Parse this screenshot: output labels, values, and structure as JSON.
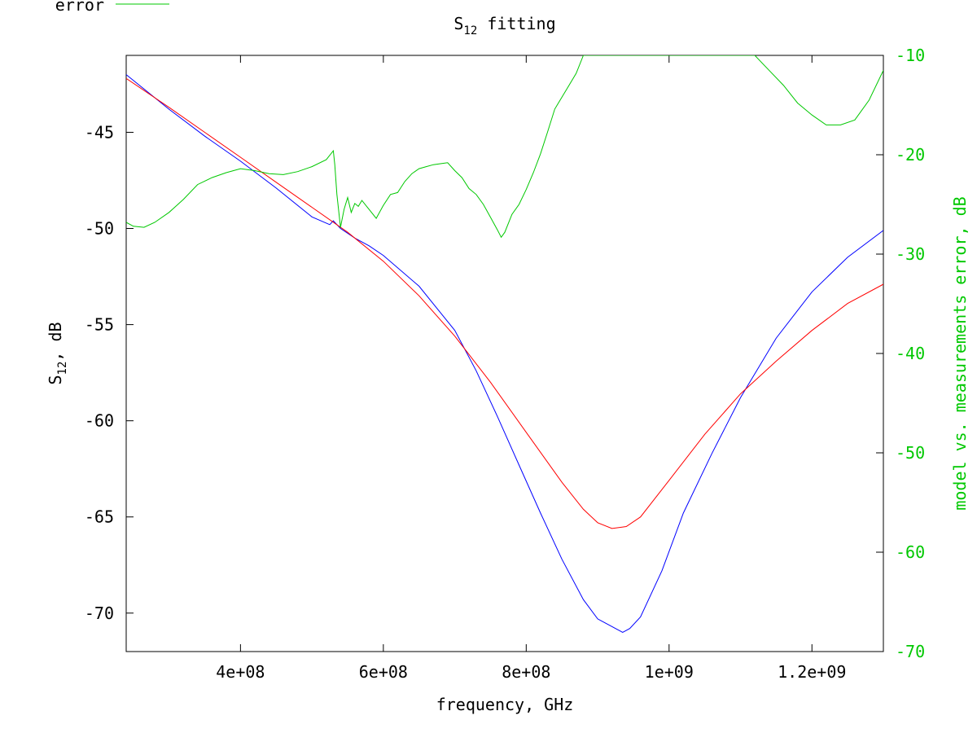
{
  "chart_data": {
    "type": "line",
    "title": {
      "main": "S",
      "sub": "12",
      "rest": " fitting"
    },
    "xlabel": "frequency, GHz",
    "ylabel": {
      "main": "S",
      "sub": "12",
      "rest": ", dB"
    },
    "y2label": "model vs. measurements error, dB",
    "xlim": [
      240000000,
      1300000000
    ],
    "ylim": [
      -72,
      -41
    ],
    "y2lim": [
      -70,
      -10
    ],
    "x_ticks": [
      {
        "value": 400000000,
        "label": "4e+08"
      },
      {
        "value": 600000000,
        "label": "6e+08"
      },
      {
        "value": 800000000,
        "label": "8e+08"
      },
      {
        "value": 1000000000,
        "label": "1e+09"
      },
      {
        "value": 1200000000,
        "label": "1.2e+09"
      }
    ],
    "y_ticks": [
      {
        "value": -45,
        "label": "-45"
      },
      {
        "value": -50,
        "label": "-50"
      },
      {
        "value": -55,
        "label": "-55"
      },
      {
        "value": -60,
        "label": "-60"
      },
      {
        "value": -65,
        "label": "-65"
      },
      {
        "value": -70,
        "label": "-70"
      }
    ],
    "y2_ticks": [
      {
        "value": -10,
        "label": "-10"
      },
      {
        "value": -20,
        "label": "-20"
      },
      {
        "value": -30,
        "label": "-30"
      },
      {
        "value": -40,
        "label": "-40"
      },
      {
        "value": -50,
        "label": "-50"
      },
      {
        "value": -60,
        "label": "-60"
      },
      {
        "value": -70,
        "label": "-70"
      }
    ],
    "grid": false,
    "legend": {
      "position": "top-left",
      "entries": [
        {
          "label": "error",
          "color": "#00c800"
        }
      ]
    },
    "series": [
      {
        "color": "#0000ff",
        "axis": "left",
        "x": [
          240000000,
          300000000,
          350000000,
          400000000,
          450000000,
          500000000,
          525000000,
          530000000,
          540000000,
          560000000,
          580000000,
          600000000,
          650000000,
          700000000,
          730000000,
          760000000,
          790000000,
          820000000,
          850000000,
          880000000,
          900000000,
          920000000,
          935000000,
          945000000,
          960000000,
          990000000,
          1020000000,
          1060000000,
          1100000000,
          1150000000,
          1200000000,
          1250000000,
          1300000000
        ],
        "y": [
          -42.0,
          -43.8,
          -45.2,
          -46.5,
          -47.9,
          -49.4,
          -49.8,
          -49.6,
          -50.0,
          -50.5,
          -50.9,
          -51.4,
          -53.0,
          -55.3,
          -57.4,
          -59.8,
          -62.3,
          -64.8,
          -67.2,
          -69.3,
          -70.3,
          -70.7,
          -71.0,
          -70.8,
          -70.2,
          -67.8,
          -64.8,
          -61.7,
          -58.8,
          -55.7,
          -53.3,
          -51.5,
          -50.1
        ]
      },
      {
        "color": "#ff0000",
        "axis": "left",
        "x": [
          240000000,
          300000000,
          350000000,
          400000000,
          450000000,
          500000000,
          550000000,
          600000000,
          650000000,
          700000000,
          750000000,
          800000000,
          850000000,
          880000000,
          900000000,
          920000000,
          940000000,
          960000000,
          1000000000,
          1050000000,
          1100000000,
          1150000000,
          1200000000,
          1250000000,
          1300000000
        ],
        "y": [
          -42.2,
          -43.7,
          -45.0,
          -46.3,
          -47.6,
          -48.9,
          -50.2,
          -51.7,
          -53.5,
          -55.6,
          -58.0,
          -60.6,
          -63.2,
          -64.6,
          -65.3,
          -65.6,
          -65.5,
          -65.0,
          -63.1,
          -60.7,
          -58.6,
          -56.9,
          -55.3,
          -53.9,
          -52.9
        ]
      },
      {
        "name": "error",
        "color": "#00c800",
        "axis": "right",
        "x": [
          240000000,
          250000000,
          265000000,
          280000000,
          300000000,
          320000000,
          340000000,
          360000000,
          380000000,
          400000000,
          420000000,
          440000000,
          460000000,
          480000000,
          500000000,
          520000000,
          530000000,
          532000000,
          535000000,
          540000000,
          545000000,
          550000000,
          555000000,
          560000000,
          565000000,
          570000000,
          580000000,
          590000000,
          600000000,
          610000000,
          620000000,
          630000000,
          640000000,
          650000000,
          660000000,
          670000000,
          680000000,
          690000000,
          700000000,
          710000000,
          720000000,
          730000000,
          740000000,
          750000000,
          760000000,
          765000000,
          770000000,
          780000000,
          790000000,
          800000000,
          810000000,
          820000000,
          830000000,
          840000000,
          850000000,
          860000000,
          870000000,
          880000000,
          1120000000,
          1140000000,
          1160000000,
          1180000000,
          1200000000,
          1220000000,
          1240000000,
          1260000000,
          1280000000,
          1300000000
        ],
        "y": [
          -26.8,
          -27.2,
          -27.3,
          -26.8,
          -25.8,
          -24.5,
          -23.0,
          -22.3,
          -21.8,
          -21.4,
          -21.6,
          -21.9,
          -22.0,
          -21.7,
          -21.2,
          -20.5,
          -19.6,
          -21.0,
          -24.0,
          -27.3,
          -25.5,
          -24.3,
          -25.8,
          -24.9,
          -25.2,
          -24.6,
          -25.5,
          -26.4,
          -25.1,
          -24.0,
          -23.8,
          -22.7,
          -21.9,
          -21.4,
          -21.2,
          -21.0,
          -20.9,
          -20.8,
          -21.6,
          -22.3,
          -23.4,
          -24.0,
          -25.0,
          -26.3,
          -27.6,
          -28.3,
          -27.8,
          -26.0,
          -25.0,
          -23.5,
          -21.8,
          -19.9,
          -17.7,
          -15.4,
          -14.2,
          -13.0,
          -11.8,
          -10.0,
          -10.0,
          -11.5,
          -13.0,
          -14.8,
          -16.0,
          -17.0,
          -17.0,
          -16.5,
          -14.5,
          -11.5
        ]
      }
    ]
  }
}
